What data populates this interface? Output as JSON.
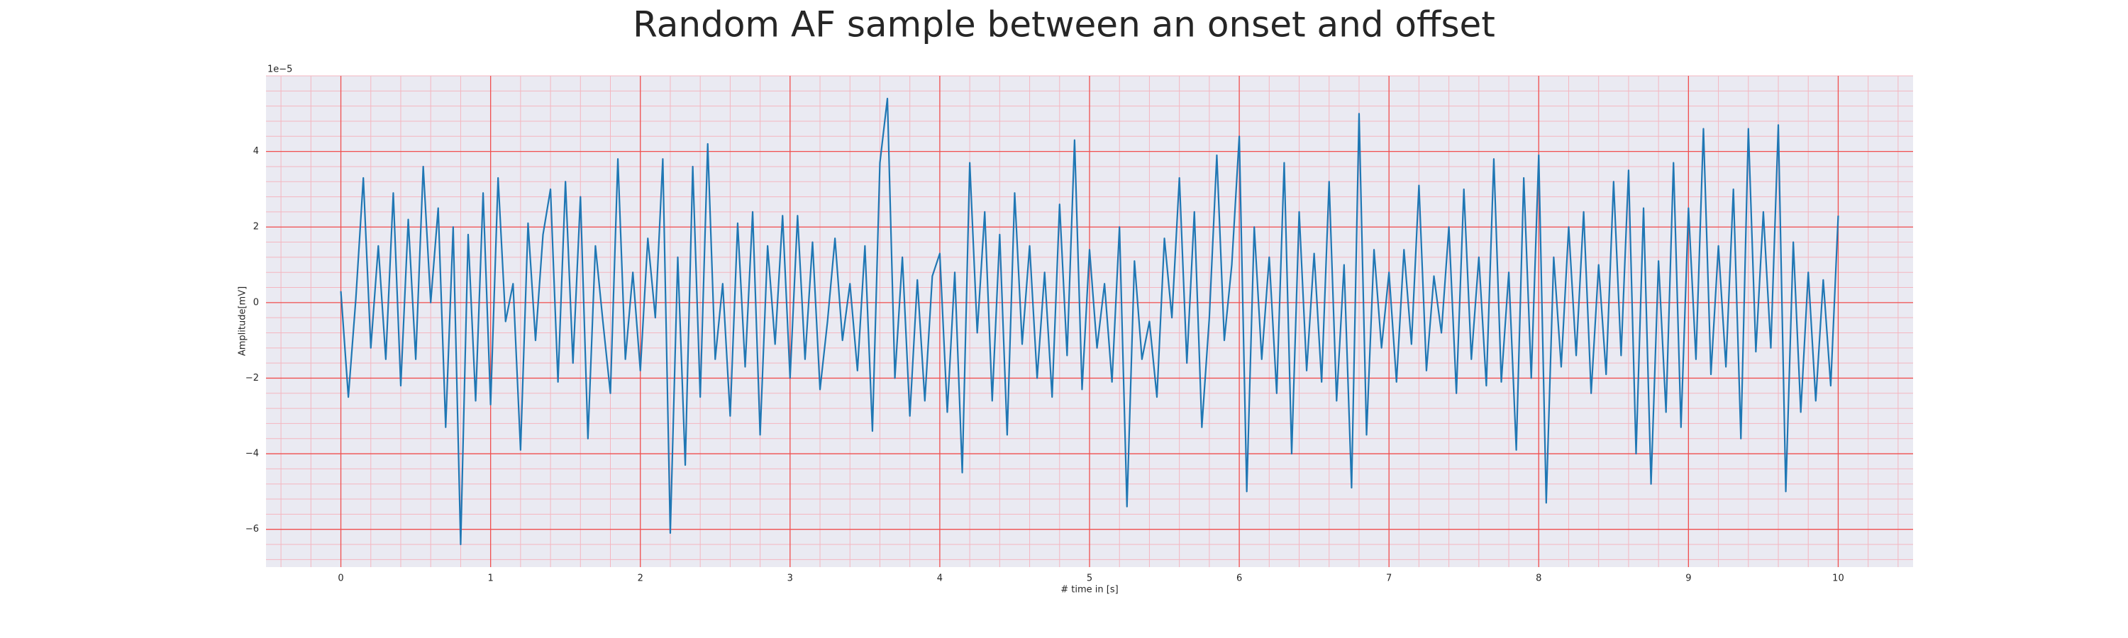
{
  "chart_data": {
    "type": "line",
    "title": "Random AF sample between an onset and offset",
    "xlabel": "# time in [s]",
    "ylabel": "Amplitude[mV]",
    "offset_label": "1e−5",
    "xlim": [
      -0.5,
      10.5
    ],
    "ylim": [
      -7,
      6
    ],
    "xticks": [
      0,
      1,
      2,
      3,
      4,
      5,
      6,
      7,
      8,
      9,
      10
    ],
    "yticks": [
      {
        "value": -6,
        "label": "−6"
      },
      {
        "value": -4,
        "label": "−4"
      },
      {
        "value": -2,
        "label": "−2"
      },
      0,
      2,
      4
    ],
    "grid": true,
    "grid_color": "#f05050",
    "minor_divisions": 5,
    "minor_grid_color": "#f4b6c0",
    "background": "#eaeaf2",
    "x": [
      0,
      0.05,
      0.1,
      0.15,
      0.2,
      0.25,
      0.3,
      0.35,
      0.4,
      0.45,
      0.5,
      0.55,
      0.6,
      0.65,
      0.7,
      0.75,
      0.8,
      0.85,
      0.9,
      0.95,
      1,
      1.05,
      1.1,
      1.15,
      1.2,
      1.25,
      1.3,
      1.35,
      1.4,
      1.45,
      1.5,
      1.55,
      1.6,
      1.65,
      1.7,
      1.75,
      1.8,
      1.85,
      1.9,
      1.95,
      2,
      2.05,
      2.1,
      2.15,
      2.2,
      2.25,
      2.3,
      2.35,
      2.4,
      2.45,
      2.5,
      2.55,
      2.6,
      2.65,
      2.7,
      2.75,
      2.8,
      2.85,
      2.9,
      2.95,
      3,
      3.05,
      3.1,
      3.15,
      3.2,
      3.25,
      3.3,
      3.35,
      3.4,
      3.45,
      3.5,
      3.55,
      3.6,
      3.65,
      3.7,
      3.75,
      3.8,
      3.85,
      3.9,
      3.95,
      4,
      4.05,
      4.1,
      4.15,
      4.2,
      4.25,
      4.3,
      4.35,
      4.4,
      4.45,
      4.5,
      4.55,
      4.6,
      4.65,
      4.7,
      4.75,
      4.8,
      4.85,
      4.9,
      4.95,
      5,
      5.05,
      5.1,
      5.15,
      5.2,
      5.25,
      5.3,
      5.35,
      5.4,
      5.45,
      5.5,
      5.55,
      5.6,
      5.65,
      5.7,
      5.75,
      5.8,
      5.85,
      5.9,
      5.95,
      6,
      6.05,
      6.1,
      6.15,
      6.2,
      6.25,
      6.3,
      6.35,
      6.4,
      6.45,
      6.5,
      6.55,
      6.6,
      6.65,
      6.7,
      6.75,
      6.8,
      6.85,
      6.9,
      6.95,
      7,
      7.05,
      7.1,
      7.15,
      7.2,
      7.25,
      7.3,
      7.35,
      7.4,
      7.45,
      7.5,
      7.55,
      7.6,
      7.65,
      7.7,
      7.75,
      7.8,
      7.85,
      7.9,
      7.95,
      8,
      8.05,
      8.1,
      8.15,
      8.2,
      8.25,
      8.3,
      8.35,
      8.4,
      8.45,
      8.5,
      8.55,
      8.6,
      8.65,
      8.7,
      8.75,
      8.8,
      8.85,
      8.9,
      8.95,
      9,
      9.05,
      9.1,
      9.15,
      9.2,
      9.25,
      9.3,
      9.35,
      9.4,
      9.45,
      9.5,
      9.55,
      9.6,
      9.65,
      9.7,
      9.75,
      9.8,
      9.85,
      9.9,
      9.95,
      10
    ],
    "series": [
      {
        "name": "AF sample",
        "color": "#1f77b4",
        "values": [
          0.3,
          -2.5,
          0.1,
          3.3,
          -1.2,
          1.5,
          -1.5,
          2.9,
          -2.2,
          2.2,
          -1.5,
          3.6,
          0.0,
          2.5,
          -3.3,
          2.0,
          -6.4,
          1.8,
          -2.6,
          2.9,
          -2.7,
          3.3,
          -0.5,
          0.5,
          -3.9,
          2.1,
          -1.0,
          1.8,
          3.0,
          -2.1,
          3.2,
          -1.6,
          2.8,
          -3.6,
          1.5,
          -0.5,
          -2.4,
          3.8,
          -1.5,
          0.8,
          -1.8,
          1.7,
          -0.4,
          3.8,
          -6.1,
          1.2,
          -4.3,
          3.6,
          -2.5,
          4.2,
          -1.5,
          0.5,
          -3.0,
          2.1,
          -1.7,
          2.4,
          -3.5,
          1.5,
          -1.1,
          2.3,
          -2.0,
          2.3,
          -1.5,
          1.6,
          -2.3,
          -0.5,
          1.7,
          -1.0,
          0.5,
          -1.8,
          1.5,
          -3.4,
          3.7,
          5.4,
          -2.0,
          1.2,
          -3.0,
          0.6,
          -2.6,
          0.7,
          1.3,
          -2.9,
          0.8,
          -4.5,
          3.7,
          -0.8,
          2.4,
          -2.6,
          1.8,
          -3.5,
          2.9,
          -1.1,
          1.5,
          -2.0,
          0.8,
          -2.5,
          2.6,
          -1.4,
          4.3,
          -2.3,
          1.4,
          -1.2,
          0.5,
          -2.1,
          2.0,
          -5.4,
          1.1,
          -1.5,
          -0.5,
          -2.5,
          1.7,
          -0.4,
          3.3,
          -1.6,
          2.4,
          -3.3,
          -0.4,
          3.9,
          -1.0,
          1.0,
          4.4,
          -5.0,
          2.0,
          -1.5,
          1.2,
          -2.4,
          3.7,
          -4.0,
          2.4,
          -1.8,
          1.3,
          -2.1,
          3.2,
          -2.6,
          1.0,
          -4.9,
          5.0,
          -3.5,
          1.4,
          -1.2,
          0.8,
          -2.1,
          1.4,
          -1.1,
          3.1,
          -1.8,
          0.7,
          -0.8,
          2.0,
          -2.4,
          3.0,
          -1.5,
          1.2,
          -2.2,
          3.8,
          -2.1,
          0.8,
          -3.9,
          3.3,
          -2.0,
          3.9,
          -5.3,
          1.2,
          -1.7,
          2.0,
          -1.4,
          2.4,
          -2.4,
          1.0,
          -1.9,
          3.2,
          -1.4,
          3.5,
          -4.0,
          2.5,
          -4.8,
          1.1,
          -2.9,
          3.7,
          -3.3,
          2.5,
          -1.5,
          4.6,
          -1.9,
          1.5,
          -1.7,
          3.0,
          -3.6,
          4.6,
          -1.3,
          2.4,
          -1.2,
          4.7,
          -5.0,
          1.6,
          -2.9,
          0.8,
          -2.6,
          0.6,
          -2.2,
          2.3
        ]
      }
    ]
  }
}
